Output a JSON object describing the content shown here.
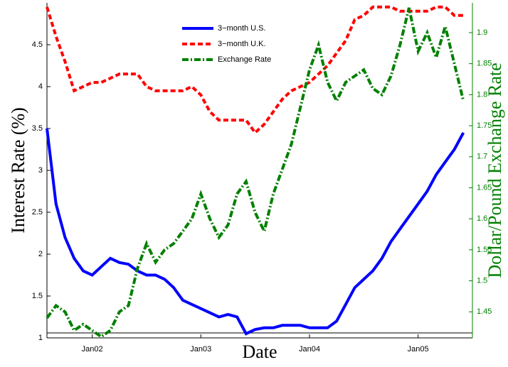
{
  "chart_data": {
    "type": "line",
    "xlabel": "Date",
    "ylabel": "Interest Rate (%)",
    "y2label": "Dollar/Pound Exchange Rate",
    "x": [
      "2001-08",
      "2001-09",
      "2001-10",
      "2001-11",
      "2001-12",
      "2002-01",
      "2002-02",
      "2002-03",
      "2002-04",
      "2002-05",
      "2002-06",
      "2002-07",
      "2002-08",
      "2002-09",
      "2002-10",
      "2002-11",
      "2002-12",
      "2003-01",
      "2003-02",
      "2003-03",
      "2003-04",
      "2003-05",
      "2003-06",
      "2003-07",
      "2003-08",
      "2003-09",
      "2003-10",
      "2003-11",
      "2003-12",
      "2004-01",
      "2004-02",
      "2004-03",
      "2004-04",
      "2004-05",
      "2004-06",
      "2004-07",
      "2004-08",
      "2004-09",
      "2004-10",
      "2004-11",
      "2004-12",
      "2005-01",
      "2005-02",
      "2005-03",
      "2005-04",
      "2005-05",
      "2005-06"
    ],
    "series": [
      {
        "name": "3−month U.S.",
        "color": "#0000ff",
        "style": "solid",
        "values": [
          3.5,
          2.6,
          2.2,
          1.95,
          1.8,
          1.75,
          1.85,
          1.95,
          1.9,
          1.88,
          1.8,
          1.75,
          1.75,
          1.7,
          1.6,
          1.45,
          1.4,
          1.35,
          1.3,
          1.25,
          1.28,
          1.25,
          1.05,
          1.1,
          1.12,
          1.12,
          1.15,
          1.15,
          1.15,
          1.12,
          1.12,
          1.12,
          1.2,
          1.4,
          1.6,
          1.7,
          1.8,
          1.95,
          2.15,
          2.3,
          2.45,
          2.6,
          2.75,
          2.95,
          3.1,
          3.25,
          3.45
        ]
      },
      {
        "name": "3−month U.K.",
        "color": "#ff0000",
        "style": "dash",
        "values": [
          4.95,
          4.6,
          4.3,
          3.95,
          4.0,
          4.05,
          4.05,
          4.1,
          4.15,
          4.15,
          4.15,
          4.0,
          3.95,
          3.95,
          3.95,
          3.95,
          4.0,
          3.9,
          3.7,
          3.6,
          3.6,
          3.6,
          3.6,
          3.45,
          3.55,
          3.7,
          3.85,
          3.95,
          4.0,
          4.05,
          4.15,
          4.25,
          4.4,
          4.55,
          4.8,
          4.85,
          4.95,
          4.95,
          4.95,
          4.9,
          4.9,
          4.9,
          4.9,
          4.95,
          4.95,
          4.85,
          4.85
        ]
      },
      {
        "name": "Exchange Rate",
        "color": "#008000",
        "style": "dashdot",
        "axis": "y2",
        "values": [
          1.44,
          1.46,
          1.45,
          1.42,
          1.43,
          1.42,
          1.41,
          1.42,
          1.45,
          1.46,
          1.52,
          1.56,
          1.53,
          1.55,
          1.56,
          1.58,
          1.6,
          1.64,
          1.6,
          1.57,
          1.59,
          1.64,
          1.66,
          1.61,
          1.58,
          1.64,
          1.68,
          1.72,
          1.78,
          1.84,
          1.88,
          1.82,
          1.79,
          1.82,
          1.83,
          1.84,
          1.81,
          1.8,
          1.83,
          1.88,
          1.94,
          1.87,
          1.9,
          1.86,
          1.91,
          1.85,
          1.79
        ]
      }
    ],
    "xlim": [
      "2001-08",
      "2005-07"
    ],
    "xticks": [
      {
        "value": "2002-01",
        "label": "Jan02"
      },
      {
        "value": "2003-01",
        "label": "Jan03"
      },
      {
        "value": "2004-01",
        "label": "Jan04"
      },
      {
        "value": "2005-01",
        "label": "Jan05"
      }
    ],
    "ylim": [
      1,
      5
    ],
    "yticks": [
      1,
      1.5,
      2,
      2.5,
      3,
      3.5,
      4,
      4.5
    ],
    "y2lim": [
      1.408,
      1.948
    ],
    "y2ticks": [
      1.45,
      1.5,
      1.55,
      1.6,
      1.65,
      1.7,
      1.75,
      1.8,
      1.85,
      1.9
    ],
    "y2color": "#008000",
    "legend": "top"
  }
}
